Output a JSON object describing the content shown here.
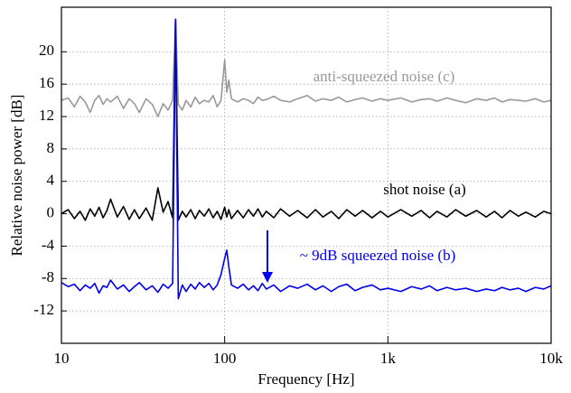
{
  "chart_data": {
    "type": "line",
    "xlabel": "Frequency [Hz]",
    "ylabel": "Relative noise power [dB]",
    "xscale": "log",
    "grid": true,
    "xlim": [
      10,
      10000
    ],
    "ylim": [
      -16,
      25.5
    ],
    "xticks": [
      10,
      100,
      {
        "value": 1000,
        "label": "1k"
      },
      {
        "value": 10000,
        "label": "10k"
      }
    ],
    "yticks": [
      -12,
      -8,
      -4,
      0,
      4,
      8,
      12,
      16,
      20
    ],
    "annotations": [
      "anti-squeezed noise (c)",
      "shot noise (a)",
      "~ 9dB  squeezed noise (b)"
    ],
    "x": [
      10,
      11,
      12,
      13,
      14,
      15,
      16,
      17,
      18,
      19,
      20,
      22,
      24,
      26,
      28,
      30,
      33,
      36,
      39,
      42,
      45,
      48,
      50,
      52,
      55,
      58,
      62,
      66,
      70,
      75,
      80,
      85,
      90,
      95,
      100,
      103,
      106,
      110,
      120,
      130,
      140,
      150,
      160,
      170,
      180,
      200,
      220,
      250,
      280,
      320,
      360,
      400,
      450,
      500,
      560,
      630,
      700,
      800,
      900,
      1000,
      1200,
      1400,
      1600,
      1800,
      2000,
      2300,
      2600,
      3000,
      3500,
      4000,
      4500,
      5000,
      5600,
      6300,
      7000,
      8000,
      9000,
      10000
    ],
    "series": [
      {
        "name": "anti-squeezed noise (c)",
        "color": "#999999",
        "values": [
          14,
          14.3,
          13.2,
          14.5,
          13.8,
          12.5,
          14,
          14.6,
          13.5,
          14.2,
          13.8,
          14.5,
          13,
          14.2,
          13.6,
          12.5,
          14.2,
          13.5,
          12,
          13.6,
          12.8,
          14,
          24,
          13.5,
          12.8,
          14,
          13.2,
          14.4,
          13.6,
          14,
          13.8,
          14.6,
          13.2,
          14,
          19,
          15,
          16.5,
          14.2,
          13.8,
          14.2,
          14,
          13.6,
          14.4,
          14,
          14.1,
          14.5,
          14,
          13.8,
          14.2,
          14.6,
          13.9,
          14.2,
          14,
          14.4,
          13.8,
          14.1,
          14.3,
          13.9,
          14.2,
          14,
          14.3,
          13.8,
          14.1,
          14.2,
          13.9,
          14.3,
          14,
          13.7,
          14.2,
          14,
          14.3,
          13.8,
          14.1,
          14,
          13.9,
          14.2,
          13.8,
          14
        ]
      },
      {
        "name": "shot noise (a)",
        "color": "#000000",
        "values": [
          0,
          0.5,
          -0.6,
          0.3,
          -0.8,
          0.6,
          -0.3,
          0.8,
          -0.5,
          0.4,
          1.8,
          -0.4,
          0.9,
          -0.7,
          0.5,
          -0.6,
          0.7,
          -0.8,
          3.2,
          0.2,
          1.5,
          -0.5,
          24,
          -0.8,
          0.3,
          -0.4,
          0.5,
          -0.6,
          0.4,
          -0.3,
          0.6,
          -0.5,
          0.3,
          -0.7,
          0.8,
          -0.4,
          0.5,
          -0.6,
          0.4,
          -0.5,
          0.5,
          -0.3,
          0.6,
          -0.4,
          0.3,
          -0.5,
          0.6,
          -0.3,
          0.4,
          -0.5,
          0.5,
          -0.4,
          0.3,
          -0.6,
          0.5,
          -0.3,
          0.4,
          -0.5,
          0.3,
          -0.4,
          0.5,
          -0.3,
          0.4,
          -0.5,
          0.3,
          -0.4,
          0.5,
          -0.3,
          0.4,
          -0.4,
          0.3,
          -0.5,
          0.4,
          -0.3,
          0.2,
          -0.4,
          0.3,
          0
        ]
      },
      {
        "name": "squeezed noise (b)",
        "color": "#0000ee",
        "values": [
          -8.5,
          -9,
          -8.7,
          -9.5,
          -8.8,
          -9.2,
          -8.6,
          -9.8,
          -8.9,
          -9.1,
          -8.2,
          -9.3,
          -8.8,
          -9.6,
          -9,
          -8.5,
          -9.4,
          -8.9,
          -9.7,
          -8.7,
          -9.2,
          -8.6,
          24,
          -10.5,
          -8.8,
          -9.6,
          -8.7,
          -9.3,
          -8.5,
          -9.1,
          -8.6,
          -9.4,
          -8.8,
          -7.5,
          -5.5,
          -4.5,
          -6.5,
          -8.8,
          -9.2,
          -8.7,
          -9.4,
          -8.9,
          -9.5,
          -8.6,
          -9.3,
          -8.8,
          -9.6,
          -8.9,
          -9.2,
          -8.7,
          -9.4,
          -8.9,
          -9.6,
          -9,
          -8.7,
          -9.5,
          -9.1,
          -8.8,
          -9.4,
          -9.2,
          -9.6,
          -9,
          -9.3,
          -8.9,
          -9.5,
          -9.1,
          -9.4,
          -9.2,
          -9.6,
          -9.3,
          -9.5,
          -9.1,
          -9.4,
          -9.2,
          -9.6,
          -9.1,
          -9.3,
          -8.9
        ]
      }
    ]
  }
}
